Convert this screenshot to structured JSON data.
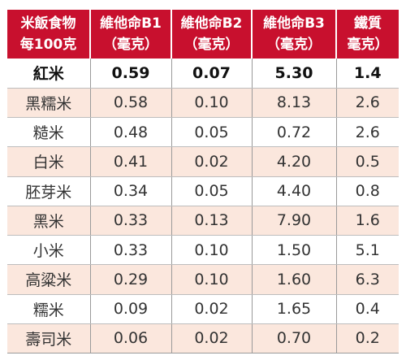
{
  "table": {
    "headers": [
      {
        "line1": "米飯食物",
        "line2": "每100克"
      },
      {
        "line1": "維他命B1",
        "line2": "（毫克）"
      },
      {
        "line1": "維他命B2",
        "line2": "（毫克）"
      },
      {
        "line1": "維他命B3",
        "line2": "（毫克）"
      },
      {
        "line1": "鐵質",
        "line2": "毫克）"
      }
    ],
    "rows": [
      {
        "food": "紅米",
        "b1": "0.59",
        "b2": "0.07",
        "b3": "5.30",
        "iron": "1.4"
      },
      {
        "food": "黑糯米",
        "b1": "0.58",
        "b2": "0.10",
        "b3": "8.13",
        "iron": "2.6"
      },
      {
        "food": "糙米",
        "b1": "0.48",
        "b2": "0.05",
        "b3": "0.72",
        "iron": "2.6"
      },
      {
        "food": "白米",
        "b1": "0.41",
        "b2": "0.02",
        "b3": "4.20",
        "iron": "0.5"
      },
      {
        "food": "胚芽米",
        "b1": "0.34",
        "b2": "0.05",
        "b3": "4.40",
        "iron": "0.8"
      },
      {
        "food": "黑米",
        "b1": "0.33",
        "b2": "0.13",
        "b3": "7.90",
        "iron": "1.6"
      },
      {
        "food": "小米",
        "b1": "0.33",
        "b2": "0.10",
        "b3": "1.50",
        "iron": "5.1"
      },
      {
        "food": "高粱米",
        "b1": "0.29",
        "b2": "0.10",
        "b3": "1.60",
        "iron": "6.3"
      },
      {
        "food": "糯米",
        "b1": "0.09",
        "b2": "0.02",
        "b3": "1.65",
        "iron": "0.4"
      },
      {
        "food": "壽司米",
        "b1": "0.06",
        "b2": "0.02",
        "b3": "0.70",
        "iron": "0.2"
      }
    ],
    "colors": {
      "header_bg": "#c8102e",
      "header_text": "#ffffff",
      "stripe": "#fbe7dd"
    }
  }
}
